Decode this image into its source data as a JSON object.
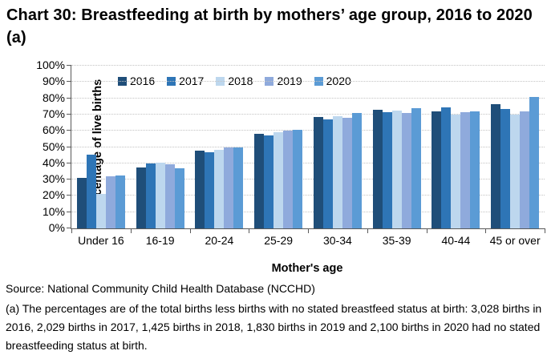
{
  "title": "Chart 30: Breastfeeding at birth by mothers’ age group, 2016 to 2020 (a)",
  "chart_data": {
    "type": "bar",
    "title": "Chart 30: Breastfeeding at birth by mothers’ age group, 2016 to 2020 (a)",
    "categories": [
      "Under 16",
      "16-19",
      "20-24",
      "25-29",
      "30-34",
      "35-39",
      "40-44",
      "45 or over"
    ],
    "series": [
      {
        "name": "2016",
        "color": "#1F4E79",
        "values": [
          31,
          37.5,
          48,
          58,
          68.5,
          73,
          72,
          76.5
        ]
      },
      {
        "name": "2017",
        "color": "#2E75B6",
        "values": [
          45.5,
          40,
          47,
          57,
          67,
          71.5,
          74.5,
          73.5
        ]
      },
      {
        "name": "2018",
        "color": "#BDD7EE",
        "values": [
          21,
          40.5,
          48.5,
          59,
          69,
          72.5,
          70,
          70
        ]
      },
      {
        "name": "2019",
        "color": "#8FAADC",
        "values": [
          32,
          39.5,
          50,
          60,
          68,
          71,
          71.5,
          72
        ]
      },
      {
        "name": "2020",
        "color": "#5B9BD5",
        "values": [
          32.5,
          37,
          50,
          60.5,
          71,
          74,
          72,
          81
        ]
      }
    ],
    "xlabel": "Mother's age",
    "ylabel": "Percentage of live births",
    "ylim": [
      0,
      100
    ],
    "ytick_step": 10,
    "ytick_labels": [
      "0%",
      "10%",
      "20%",
      "30%",
      "40%",
      "50%",
      "60%",
      "70%",
      "80%",
      "90%",
      "100%"
    ],
    "grid": "horizontal-dotted",
    "legend_position": "top-inside"
  },
  "footer": {
    "source": "Source: National Community Child Health Database (NCCHD)",
    "footnote": "(a) The percentages are of the total births less births with no stated breastfeed status at birth: 3,028 births in 2016, 2,029 births in 2017, 1,425 births in 2018, 1,830 births in 2019 and 2,100 births in 2020 had no stated breastfeeding status at birth."
  }
}
